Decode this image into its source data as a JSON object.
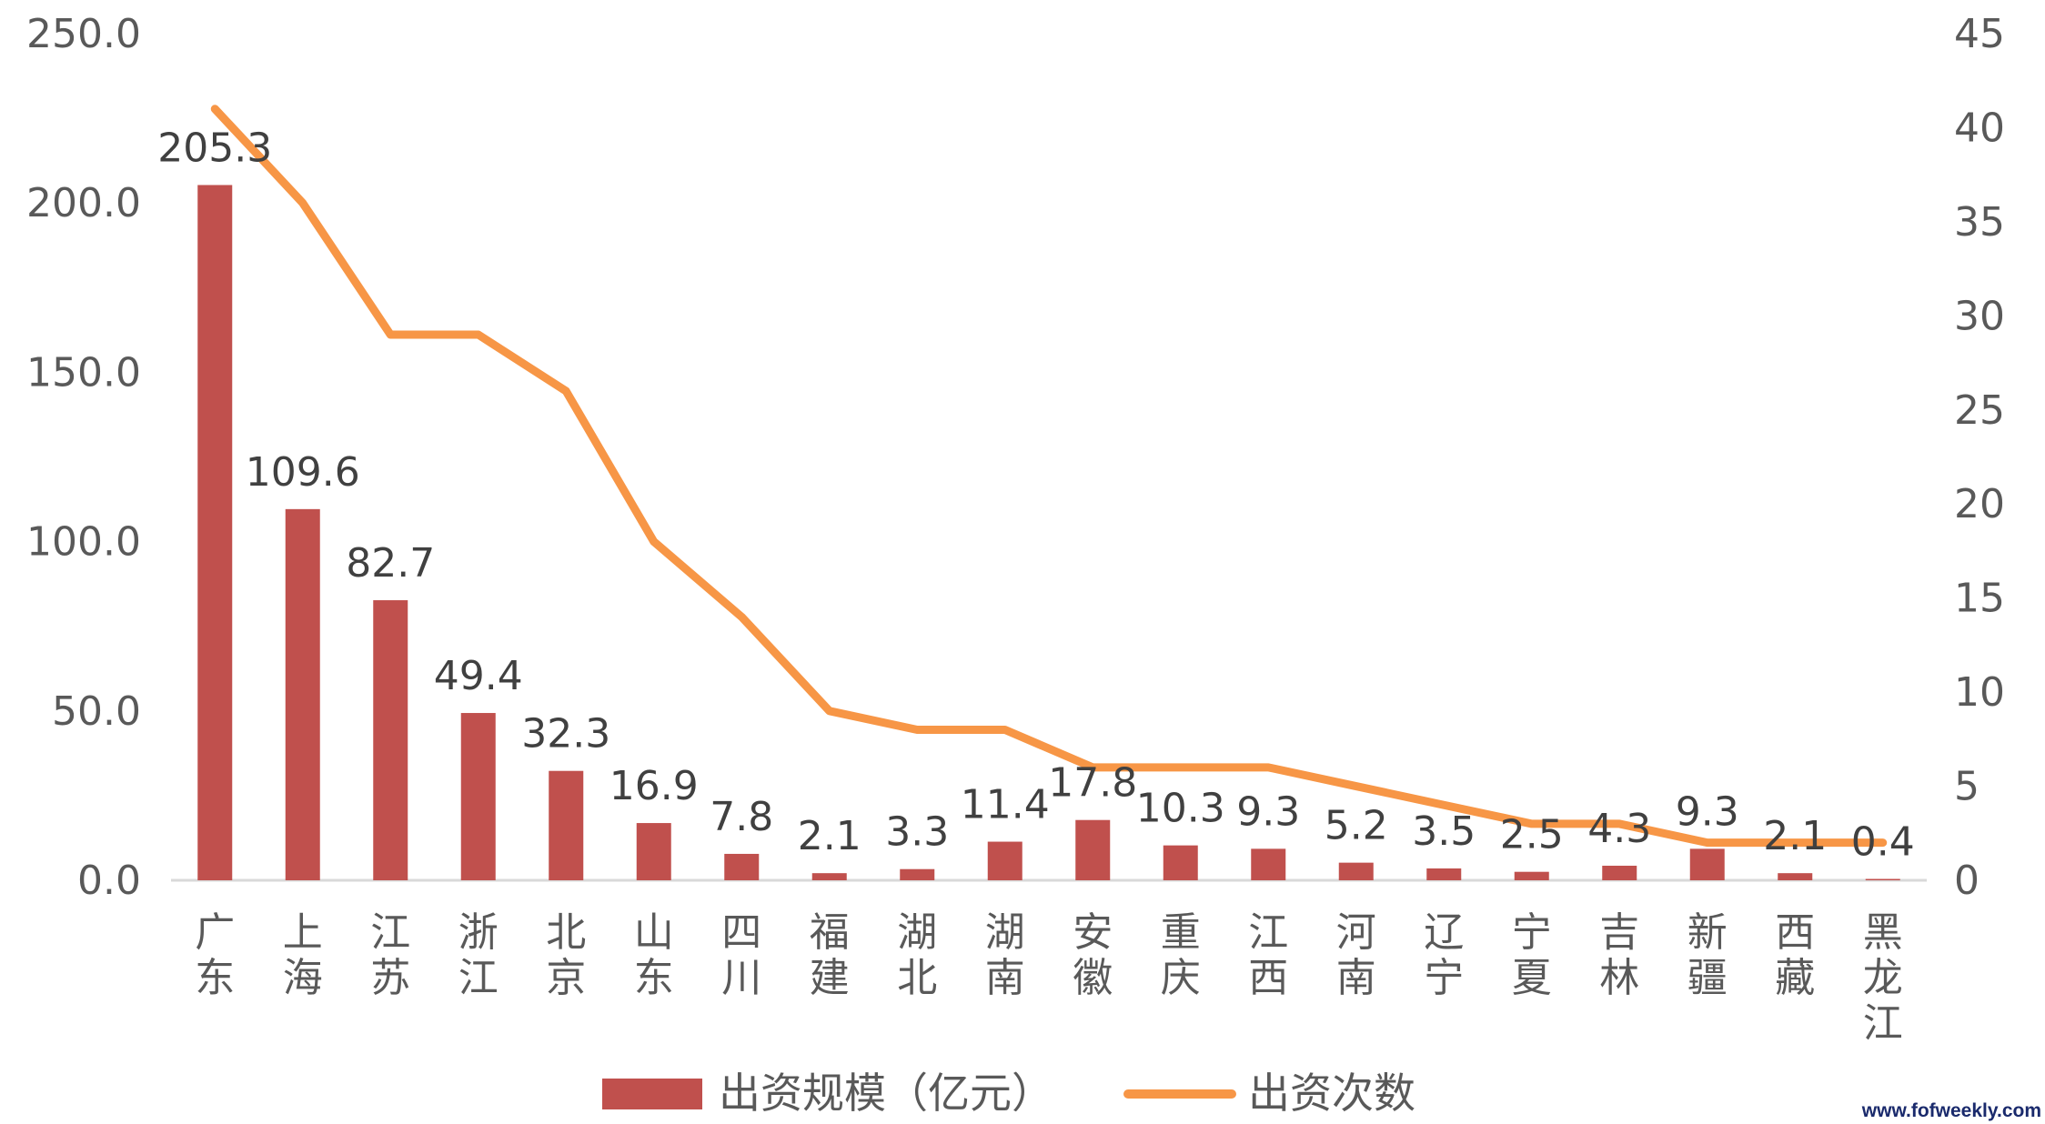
{
  "chart_data": {
    "type": "bar+line",
    "categories": [
      "广东",
      "上海",
      "江苏",
      "浙江",
      "北京",
      "山东",
      "四川",
      "福建",
      "湖北",
      "湖南",
      "安徽",
      "重庆",
      "江西",
      "河南",
      "辽宁",
      "宁夏",
      "吉林",
      "新疆",
      "西藏",
      "黑龙江"
    ],
    "series": [
      {
        "name": "出资规模（亿元）",
        "type": "bar",
        "axis": "left",
        "color": "#c0504d",
        "values": [
          205.3,
          109.6,
          82.7,
          49.4,
          32.3,
          16.9,
          7.8,
          2.1,
          3.3,
          11.4,
          17.8,
          10.3,
          9.3,
          5.2,
          3.5,
          2.5,
          4.3,
          9.3,
          2.1,
          0.4
        ],
        "labels": [
          "205.3",
          "109.6",
          "82.7",
          "49.4",
          "32.3",
          "16.9",
          "7.8",
          "2.1",
          "3.3",
          "11.4",
          "17.8",
          "10.3",
          "9.3",
          "5.2",
          "3.5",
          "2.5",
          "4.3",
          "9.3",
          "2.1",
          "0.4"
        ]
      },
      {
        "name": "出资次数",
        "type": "line",
        "axis": "right",
        "color": "#f79646",
        "values": [
          41,
          36,
          29,
          29,
          26,
          18,
          14,
          9,
          8,
          8,
          6,
          6,
          6,
          5,
          4,
          3,
          3,
          2,
          2,
          2
        ]
      }
    ],
    "y_left": {
      "min": 0,
      "max": 250,
      "step": 50,
      "ticks": [
        "0.0",
        "50.0",
        "100.0",
        "150.0",
        "200.0",
        "250.0"
      ]
    },
    "y_right": {
      "min": 0,
      "max": 45,
      "step": 5,
      "ticks": [
        "0",
        "5",
        "10",
        "15",
        "20",
        "25",
        "30",
        "35",
        "40",
        "45"
      ]
    },
    "grid": false,
    "legend_position": "bottom"
  },
  "watermark": "www.fofweekly.com"
}
